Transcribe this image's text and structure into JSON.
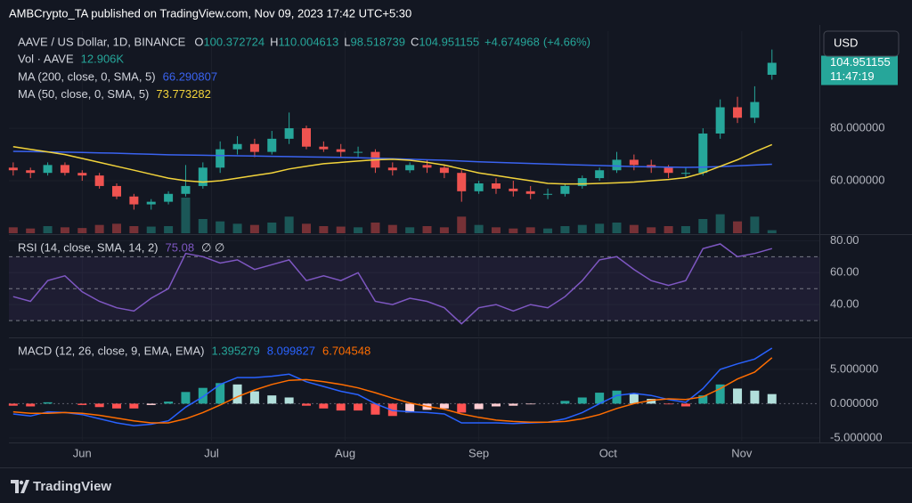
{
  "header": "AMBCrypto_TA published on TradingView.com, Nov 09, 2023 17:42 UTC+5:30",
  "brand": "TradingView",
  "currency_button": "USD",
  "countdown": "11:47:19",
  "chart_data": [
    {
      "type": "candlestick",
      "title": "AAVE / US Dollar, 1D, BINANCE",
      "ohlc_letters": [
        "O",
        "H",
        "L",
        "C"
      ],
      "change": {
        "value": 4.674968,
        "label": "+4.674968"
      },
      "change_pct": {
        "value": 4.66,
        "label": "(+4.66%)"
      },
      "up_color": "#26a69a",
      "down_color": "#ef5350",
      "x": [
        -16,
        -12,
        -8,
        -4,
        0,
        4,
        8,
        12,
        16,
        20,
        24,
        28,
        32,
        36,
        40,
        44,
        48,
        52,
        56,
        60,
        64,
        68,
        72,
        76,
        80,
        84,
        88,
        92,
        96,
        100,
        104,
        108,
        112,
        116,
        120,
        124,
        128,
        132,
        136,
        140,
        144,
        148,
        152,
        156,
        160
      ],
      "open": [
        65,
        64,
        63,
        66,
        63,
        62,
        58,
        54,
        51,
        52,
        55,
        58,
        65,
        72,
        74,
        71,
        76,
        80,
        73,
        72,
        71,
        71,
        65,
        64,
        66,
        65,
        63,
        56,
        59,
        57,
        56,
        55,
        55,
        58,
        61,
        64,
        68,
        66,
        65,
        63,
        63,
        78,
        88,
        84,
        100.372724
      ],
      "high": [
        67,
        65,
        67,
        67,
        64,
        63,
        59,
        55,
        53,
        56,
        66,
        67,
        75,
        77,
        76,
        79,
        86,
        81,
        75,
        74,
        73,
        72,
        67,
        67,
        68,
        66,
        64,
        60,
        61,
        60,
        58,
        57,
        59,
        62,
        65,
        71,
        70,
        68,
        66,
        65,
        80,
        91,
        92,
        96,
        110.004613
      ],
      "low": [
        62,
        61,
        62,
        62,
        60,
        57,
        53,
        49,
        49,
        51,
        54,
        57,
        63,
        70,
        69,
        70,
        74,
        72,
        71,
        69,
        69,
        63,
        62,
        63,
        63,
        61,
        52,
        55,
        55,
        54,
        53,
        53,
        54,
        57,
        60,
        63,
        64,
        63,
        61,
        61,
        62,
        76,
        82,
        82,
        98.518739
      ],
      "close": [
        64,
        63,
        66,
        63,
        62,
        58,
        54,
        51,
        52,
        55,
        58,
        65,
        72,
        74,
        71,
        76,
        80,
        73,
        72,
        71,
        71,
        65,
        64,
        66,
        65,
        63,
        56,
        59,
        57,
        56,
        55,
        55,
        58,
        61,
        64,
        68,
        66,
        65,
        63,
        63,
        78,
        88,
        84,
        90,
        104.951155
      ],
      "xlim": [
        -17,
        171
      ],
      "xticks": [
        {
          "value": 0,
          "label": "Jun"
        },
        {
          "value": 30,
          "label": "Jul"
        },
        {
          "value": 61,
          "label": "Aug"
        },
        {
          "value": 92,
          "label": "Sep"
        },
        {
          "value": 122,
          "label": "Oct"
        },
        {
          "value": 153,
          "label": "Nov"
        }
      ],
      "ylim": [
        40,
        117
      ],
      "yticks": [
        {
          "value": 80,
          "label": "80.000000"
        },
        {
          "value": 60,
          "label": "60.000000"
        }
      ],
      "grid": true,
      "volume": {
        "name": "Vol · AAVE",
        "last_label": "12.906K",
        "values": [
          25000,
          20000,
          30000,
          25000,
          22000,
          35000,
          40000,
          30000,
          28000,
          30000,
          150000,
          60000,
          50000,
          40000,
          35000,
          45000,
          70000,
          40000,
          30000,
          28000,
          25000,
          45000,
          35000,
          25000,
          30000,
          25000,
          70000,
          35000,
          25000,
          20000,
          25000,
          20000,
          30000,
          35000,
          40000,
          45000,
          35000,
          25000,
          30000,
          30000,
          60000,
          80000,
          50000,
          70000,
          12906
        ]
      },
      "overlays": [
        {
          "name": "MA (200, close, 0, SMA, 5)",
          "color": "#3a63f0",
          "values": [
            71.2,
            71.1,
            71.0,
            70.9,
            70.8,
            70.6,
            70.5,
            70.3,
            70.1,
            69.9,
            69.8,
            69.7,
            69.6,
            69.5,
            69.4,
            69.3,
            69.2,
            69.1,
            69.0,
            68.9,
            68.8,
            68.6,
            68.4,
            68.2,
            68.0,
            67.8,
            67.5,
            67.2,
            67.0,
            66.8,
            66.6,
            66.4,
            66.2,
            66.0,
            65.8,
            65.6,
            65.4,
            65.3,
            65.2,
            65.1,
            65.2,
            65.4,
            65.7,
            66.0,
            66.290807
          ]
        },
        {
          "name": "MA (50, close, 0, SMA, 5)",
          "color": "#f2d33b",
          "values": [
            73,
            72,
            71,
            70,
            68.5,
            67,
            65.5,
            64,
            62.5,
            61,
            60,
            59.5,
            60,
            61,
            62,
            63,
            64.5,
            65.5,
            66.5,
            67,
            67.5,
            68,
            68.2,
            67.8,
            67,
            66,
            64.5,
            63,
            62,
            61,
            60,
            59,
            58.8,
            58.8,
            59,
            59.2,
            59.5,
            60,
            60.5,
            61.2,
            63,
            65.5,
            68,
            71,
            73.773282
          ]
        }
      ]
    },
    {
      "type": "line",
      "title": "RSI (14, close, SMA, 14, 2)",
      "extra": "∅ ∅",
      "x": [
        -16,
        -12,
        -8,
        -4,
        0,
        4,
        8,
        12,
        16,
        20,
        24,
        28,
        32,
        36,
        40,
        44,
        48,
        52,
        56,
        60,
        64,
        68,
        72,
        76,
        80,
        84,
        88,
        92,
        96,
        100,
        104,
        108,
        112,
        116,
        120,
        124,
        128,
        132,
        136,
        140,
        144,
        148,
        152,
        156,
        160
      ],
      "series": [
        {
          "color": "#7e57c2",
          "values": [
            45,
            42,
            55,
            58,
            48,
            42,
            38,
            36,
            44,
            50,
            72,
            70,
            66,
            68,
            62,
            65,
            68,
            55,
            58,
            55,
            60,
            42,
            40,
            44,
            42,
            38,
            28,
            38,
            40,
            36,
            40,
            38,
            45,
            55,
            68,
            70,
            62,
            55,
            52,
            55,
            75,
            78,
            70,
            72,
            75.08
          ]
        }
      ],
      "bands": [
        70,
        50,
        30
      ],
      "xlim": [
        -17,
        171
      ],
      "ylim": [
        20,
        83
      ],
      "yticks": [
        {
          "value": 80,
          "label": "80.00"
        },
        {
          "value": 60,
          "label": "60.00"
        },
        {
          "value": 40,
          "label": "40.00"
        }
      ]
    },
    {
      "type": "macd",
      "title": "MACD (12, 26, close, 9, EMA, EMA)",
      "x": [
        -16,
        -12,
        -8,
        -4,
        0,
        4,
        8,
        12,
        16,
        20,
        24,
        28,
        32,
        36,
        40,
        44,
        48,
        52,
        56,
        60,
        64,
        68,
        72,
        76,
        80,
        84,
        88,
        92,
        96,
        100,
        104,
        108,
        112,
        116,
        120,
        124,
        128,
        132,
        136,
        140,
        144,
        148,
        152,
        156,
        160
      ],
      "histogram": {
        "colors": {
          "grow_pos": "#26a69a",
          "fall_pos": "#b2dfdb",
          "grow_neg": "#ffcdd2",
          "fall_neg": "#ff5252"
        },
        "values": [
          -0.3,
          -0.4,
          0.2,
          0.0,
          -0.2,
          -0.5,
          -0.7,
          -0.7,
          -0.2,
          0.3,
          1.7,
          2.3,
          3.0,
          2.8,
          1.8,
          1.2,
          0.9,
          -0.3,
          -0.7,
          -1.0,
          -1.0,
          -1.6,
          -1.8,
          -1.3,
          -0.9,
          -0.7,
          -1.3,
          -0.8,
          -0.4,
          -0.3,
          -0.1,
          0.0,
          0.4,
          0.9,
          1.6,
          1.9,
          1.5,
          0.7,
          -0.1,
          -0.4,
          1.2,
          2.8,
          2.2,
          1.9,
          1.395279
        ]
      },
      "series": [
        {
          "color": "#2962ff",
          "values": [
            -1.5,
            -1.8,
            -1.2,
            -1.3,
            -1.6,
            -2.2,
            -2.8,
            -3.2,
            -3.0,
            -2.5,
            -0.5,
            1.0,
            2.8,
            3.8,
            3.8,
            4.0,
            4.3,
            3.2,
            2.5,
            1.8,
            1.3,
            0.0,
            -1.0,
            -1.2,
            -1.3,
            -1.5,
            -2.8,
            -2.8,
            -2.8,
            -2.9,
            -2.8,
            -2.7,
            -2.2,
            -1.3,
            0.0,
            1.2,
            1.5,
            1.2,
            0.6,
            0.2,
            2.2,
            5.0,
            5.8,
            6.5,
            8.099827
          ]
        },
        {
          "color": "#ff6d00",
          "values": [
            -1.2,
            -1.4,
            -1.4,
            -1.3,
            -1.4,
            -1.7,
            -2.1,
            -2.5,
            -2.8,
            -2.8,
            -2.2,
            -1.3,
            -0.2,
            1.0,
            2.0,
            2.8,
            3.4,
            3.5,
            3.2,
            2.8,
            2.3,
            1.6,
            0.8,
            0.1,
            -0.4,
            -0.8,
            -1.5,
            -2.0,
            -2.4,
            -2.6,
            -2.7,
            -2.7,
            -2.6,
            -2.2,
            -1.6,
            -0.7,
            0.0,
            0.5,
            0.7,
            0.6,
            1.0,
            2.2,
            3.6,
            4.6,
            6.704548
          ]
        }
      ],
      "xlim": [
        -17,
        171
      ],
      "ylim": [
        -5.4,
        9.4
      ],
      "yticks": [
        {
          "value": 5,
          "label": "5.000000"
        },
        {
          "value": 0,
          "label": "0.000000"
        },
        {
          "value": -5,
          "label": "-5.000000"
        }
      ]
    }
  ]
}
